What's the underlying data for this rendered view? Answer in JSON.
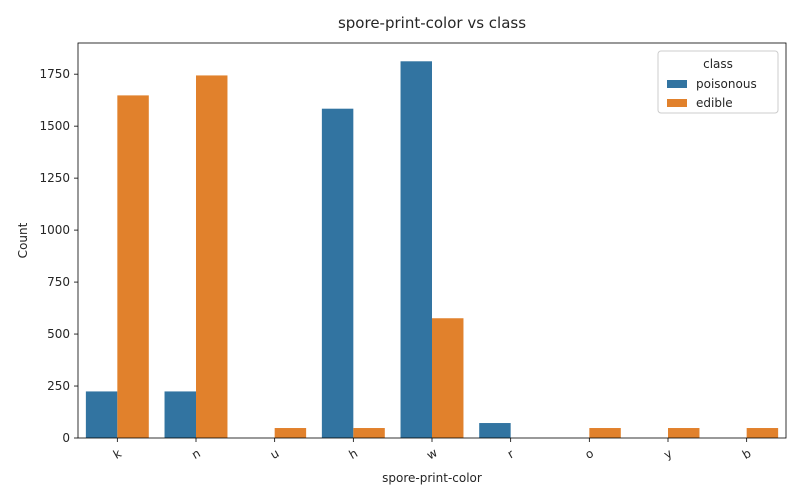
{
  "chart_data": {
    "type": "bar",
    "title": "spore-print-color vs class",
    "xlabel": "spore-print-color",
    "ylabel": "Count",
    "categories": [
      "k",
      "n",
      "u",
      "h",
      "w",
      "r",
      "o",
      "y",
      "b"
    ],
    "ylim": [
      0,
      1900
    ],
    "yticks": [
      0,
      250,
      500,
      750,
      1000,
      1250,
      1500,
      1750
    ],
    "grid": false,
    "legend": {
      "title": "class",
      "placement": "top-right"
    },
    "series": [
      {
        "name": "poisonous",
        "color": "#3274a1",
        "values": [
          224,
          224,
          0,
          1584,
          1812,
          72,
          0,
          0,
          0
        ]
      },
      {
        "name": "edible",
        "color": "#e1812c",
        "values": [
          1648,
          1744,
          48,
          48,
          576,
          0,
          48,
          48,
          48
        ]
      }
    ]
  }
}
